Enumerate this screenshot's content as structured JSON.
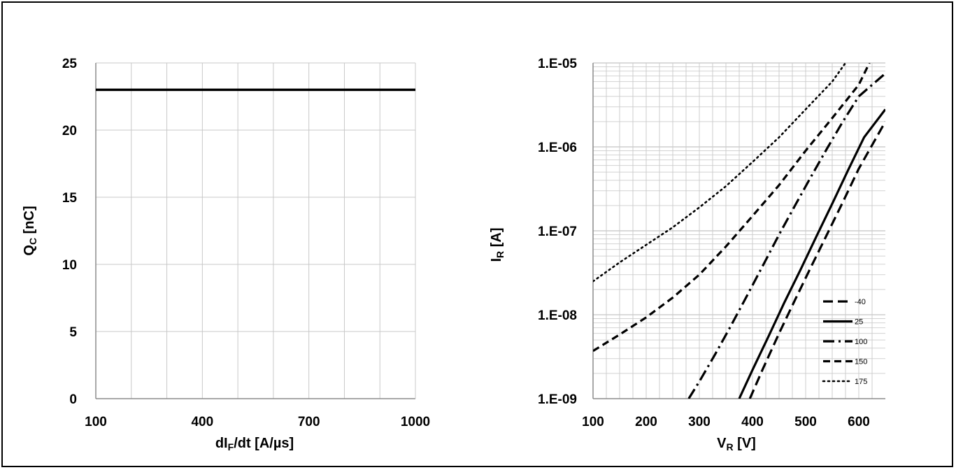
{
  "charts": [
    {
      "type": "line",
      "xlabel": {
        "main": "dI",
        "sub": "F",
        "rest": "/dt [A/µs]"
      },
      "ylabel": {
        "main": "Q",
        "sub": "C",
        "rest": " [nC]"
      },
      "xlim": [
        100,
        1000
      ],
      "ylim": [
        0,
        25
      ],
      "x_ticks": [
        100,
        400,
        700,
        1000
      ],
      "y_ticks": [
        0,
        5,
        10,
        15,
        20,
        25
      ],
      "x_tick_labels": [
        "100",
        "400",
        "700",
        "1000"
      ],
      "y_tick_labels": [
        "0",
        "5",
        "10",
        "15",
        "20",
        "25"
      ],
      "grid": true,
      "series": [
        {
          "x": [
            100,
            1000
          ],
          "y": [
            23,
            23
          ]
        }
      ]
    },
    {
      "type": "line",
      "y_scale": "log",
      "xlabel": {
        "main": "V",
        "sub": "R",
        "rest": " [V]"
      },
      "ylabel": {
        "main": "I",
        "sub": "R",
        "rest": " [A]"
      },
      "xlim": [
        100,
        650
      ],
      "ylim": [
        1e-09,
        1e-05
      ],
      "x_ticks": [
        100,
        200,
        300,
        400,
        500,
        600
      ],
      "x_tick_labels": [
        "100",
        "200",
        "300",
        "400",
        "500",
        "600"
      ],
      "y_ticks": [
        1e-09,
        1e-08,
        1e-07,
        1e-06,
        1e-05
      ],
      "y_tick_labels": [
        "1.E-09",
        "1.E-08",
        "1.E-07",
        "1.E-06",
        "1.E-05"
      ],
      "grid": true,
      "legend_position": "bottom-right",
      "series": [
        {
          "name": "-40",
          "dash": "long-dash",
          "x": [
            395,
            420,
            450,
            480,
            510,
            540,
            570,
            600,
            650
          ],
          "y": [
            1e-09,
            2.3e-09,
            6e-09,
            1.5e-08,
            3.7e-08,
            9e-08,
            2.2e-07,
            5.5e-07,
            2e-06
          ]
        },
        {
          "name": "25",
          "dash": "solid",
          "x": [
            375,
            400,
            430,
            460,
            490,
            520,
            550,
            580,
            610,
            650
          ],
          "y": [
            1e-09,
            2.2e-09,
            5.5e-09,
            1.4e-08,
            3.4e-08,
            8.5e-08,
            2.1e-07,
            5.3e-07,
            1.3e-06,
            2.8e-06
          ]
        },
        {
          "name": "100",
          "dash": "dash-dot",
          "x": [
            280,
            300,
            330,
            360,
            390,
            420,
            450,
            480,
            510,
            540,
            570,
            600,
            650
          ],
          "y": [
            1e-09,
            1.6e-09,
            3.4e-09,
            7.5e-09,
            1.7e-08,
            3.9e-08,
            9e-08,
            2e-07,
            4.4e-07,
            9.5e-07,
            2e-06,
            4e-06,
            7.5e-06
          ]
        },
        {
          "name": "150",
          "dash": "dash",
          "x": [
            100,
            150,
            200,
            250,
            300,
            350,
            400,
            450,
            500,
            550,
            600,
            620
          ],
          "y": [
            3.7e-09,
            5.8e-09,
            9.3e-09,
            1.6e-08,
            3e-08,
            6.5e-08,
            1.5e-07,
            3.5e-07,
            9e-07,
            2.2e-06,
            5.5e-06,
            1e-05
          ]
        },
        {
          "name": "175",
          "dash": "dotted",
          "x": [
            100,
            150,
            200,
            250,
            300,
            350,
            400,
            450,
            500,
            550,
            575
          ],
          "y": [
            2.5e-08,
            4.2e-08,
            6.8e-08,
            1.1e-07,
            1.9e-07,
            3.4e-07,
            6.6e-07,
            1.3e-06,
            2.8e-06,
            6e-06,
            1e-05
          ]
        }
      ]
    }
  ]
}
